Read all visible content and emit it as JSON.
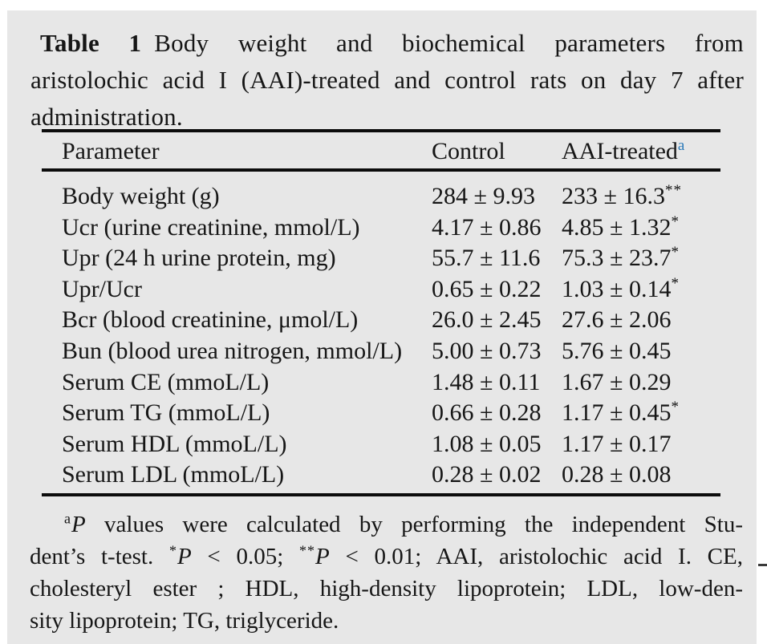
{
  "page": {
    "background": "#ffffff",
    "panel_color": "#e7e7e7",
    "text_color": "#161616",
    "rule_color": "#0c0c0c",
    "accent_blue": "#2878b8"
  },
  "title": {
    "label": "Table 1",
    "line1_rest": "Body weight and biochemical parameters from",
    "line2": "aristolochic acid I (AAI)-treated and control rats on day 7 after",
    "line3": "administration."
  },
  "table": {
    "header": {
      "parameter": "Parameter",
      "control": "Control",
      "treated": "AAI-treated",
      "treated_sup": "a"
    },
    "rows": [
      {
        "parameter": "Body weight (g)",
        "control": "284 ± 9.93",
        "treated": "233 ± 16.3",
        "sup": "**"
      },
      {
        "parameter": "Ucr (urine creatinine, mmol/L)",
        "control": "4.17 ± 0.86",
        "treated": "4.85 ± 1.32",
        "sup": "*"
      },
      {
        "parameter": "Upr (24 h urine protein, mg)",
        "control": "55.7 ± 11.6",
        "treated": "75.3 ± 23.7",
        "sup": "*"
      },
      {
        "parameter": "Upr/Ucr",
        "control": "0.65 ± 0.22",
        "treated": "1.03 ± 0.14",
        "sup": "*"
      },
      {
        "parameter": "Bcr (blood creatinine, μmol/L)",
        "control": "26.0 ± 2.45",
        "treated": "27.6 ± 2.06",
        "sup": ""
      },
      {
        "parameter": "Bun (blood urea nitrogen, mmol/L)",
        "control": "5.00 ± 0.73",
        "treated": "5.76 ± 0.45",
        "sup": ""
      },
      {
        "parameter": "Serum CE (mmoL/L)",
        "control": "1.48 ± 0.11",
        "treated": "1.67 ± 0.29",
        "sup": ""
      },
      {
        "parameter": "Serum TG (mmoL/L)",
        "control": "0.66 ± 0.28",
        "treated": "1.17 ± 0.45",
        "sup": "*"
      },
      {
        "parameter": "Serum HDL (mmoL/L)",
        "control": "1.08 ± 0.05",
        "treated": "1.17 ± 0.17",
        "sup": ""
      },
      {
        "parameter": "Serum LDL (mmoL/L)",
        "control": "0.28 ± 0.02",
        "treated": "0.28 ± 0.08",
        "sup": ""
      }
    ]
  },
  "footnote": {
    "sup_a": "a",
    "p_italic": "P",
    "line1": " values were calculated by performing the independent Stu-",
    "line2_start": "dent’s t-test. ",
    "star1": "*",
    "line2_mid": " < 0.05; ",
    "star2": "**",
    "line2_end": " < 0.01; AAI, aristolochic acid I. CE,",
    "line3": "cholesteryl ester ; HDL, high-density lipoprotein; LDL, low-den-",
    "line4": "sity lipoprotein; TG, triglyceride."
  }
}
